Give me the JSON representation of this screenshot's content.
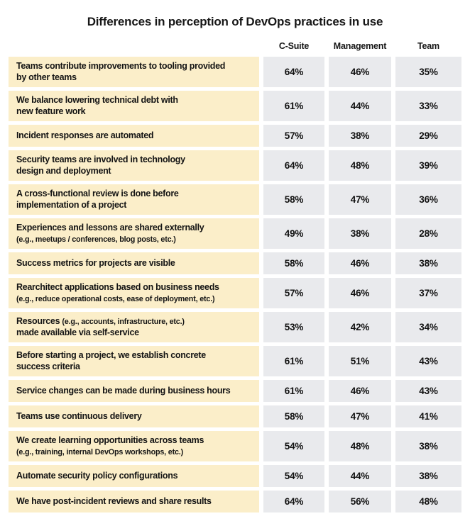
{
  "title": "Differences in perception of DevOps practices in use",
  "columns": [
    "C-Suite",
    "Management",
    "Team"
  ],
  "colors": {
    "label_bg": "#FBEEC9",
    "value_bg": "#E9EAED",
    "text": "#141414",
    "page_bg": "#FFFFFF"
  },
  "rows": [
    {
      "lines": [
        [
          {
            "t": "Teams contribute improvements to tooling provided"
          }
        ],
        [
          {
            "t": "by other teams"
          }
        ]
      ],
      "values": [
        "64%",
        "46%",
        "35%"
      ]
    },
    {
      "lines": [
        [
          {
            "t": "We balance lowering technical debt with"
          }
        ],
        [
          {
            "t": "new feature work"
          }
        ]
      ],
      "values": [
        "61%",
        "44%",
        "33%"
      ]
    },
    {
      "lines": [
        [
          {
            "t": "Incident responses are automated"
          }
        ]
      ],
      "values": [
        "57%",
        "38%",
        "29%"
      ]
    },
    {
      "lines": [
        [
          {
            "t": "Security teams are involved in technology"
          }
        ],
        [
          {
            "t": "design and deployment"
          }
        ]
      ],
      "values": [
        "64%",
        "48%",
        "39%"
      ]
    },
    {
      "lines": [
        [
          {
            "t": "A cross-functional review is done before"
          }
        ],
        [
          {
            "t": "implementation of a project"
          }
        ]
      ],
      "values": [
        "58%",
        "47%",
        "36%"
      ]
    },
    {
      "lines": [
        [
          {
            "t": "Experiences and lessons are shared externally"
          }
        ],
        [
          {
            "t": "(e.g., meetups / conferences, blog posts, etc.)",
            "small": true
          }
        ]
      ],
      "values": [
        "49%",
        "38%",
        "28%"
      ]
    },
    {
      "lines": [
        [
          {
            "t": "Success metrics for projects are visible"
          }
        ]
      ],
      "values": [
        "58%",
        "46%",
        "38%"
      ]
    },
    {
      "lines": [
        [
          {
            "t": "Rearchitect applications based on business needs"
          }
        ],
        [
          {
            "t": "(e.g., reduce operational costs, ease of deployment, etc.)",
            "small": true
          }
        ]
      ],
      "values": [
        "57%",
        "46%",
        "37%"
      ]
    },
    {
      "lines": [
        [
          {
            "t": "Resources "
          },
          {
            "t": "(e.g., accounts, infrastructure, etc.)",
            "small": true
          }
        ],
        [
          {
            "t": "made available via self-service"
          }
        ]
      ],
      "values": [
        "53%",
        "42%",
        "34%"
      ]
    },
    {
      "lines": [
        [
          {
            "t": "Before starting a project, we establish concrete"
          }
        ],
        [
          {
            "t": "success criteria"
          }
        ]
      ],
      "values": [
        "61%",
        "51%",
        "43%"
      ]
    },
    {
      "lines": [
        [
          {
            "t": "Service changes can be made during business hours"
          }
        ]
      ],
      "values": [
        "61%",
        "46%",
        "43%"
      ]
    },
    {
      "lines": [
        [
          {
            "t": "Teams use continuous delivery"
          }
        ]
      ],
      "values": [
        "58%",
        "47%",
        "41%"
      ]
    },
    {
      "lines": [
        [
          {
            "t": "We create learning opportunities across teams"
          }
        ],
        [
          {
            "t": "(e.g., training, internal DevOps workshops, etc.)",
            "small": true
          }
        ]
      ],
      "values": [
        "54%",
        "48%",
        "38%"
      ]
    },
    {
      "lines": [
        [
          {
            "t": "Automate security policy configurations"
          }
        ]
      ],
      "values": [
        "54%",
        "44%",
        "38%"
      ]
    },
    {
      "lines": [
        [
          {
            "t": "We have post-incident reviews and share results"
          }
        ]
      ],
      "values": [
        "64%",
        "56%",
        "48%"
      ]
    }
  ],
  "chart_data": {
    "type": "table",
    "title": "Differences in perception of DevOps practices in use",
    "columns": [
      "C-Suite",
      "Management",
      "Team"
    ],
    "unit": "percent",
    "rows": [
      {
        "practice": "Teams contribute improvements to tooling provided by other teams",
        "values": [
          64,
          46,
          35
        ]
      },
      {
        "practice": "We balance lowering technical debt with new feature work",
        "values": [
          61,
          44,
          33
        ]
      },
      {
        "practice": "Incident responses are automated",
        "values": [
          57,
          38,
          29
        ]
      },
      {
        "practice": "Security teams are involved in technology design and deployment",
        "values": [
          64,
          48,
          39
        ]
      },
      {
        "practice": "A cross-functional review is done before implementation of a project",
        "values": [
          58,
          47,
          36
        ]
      },
      {
        "practice": "Experiences and lessons are shared externally (e.g., meetups / conferences, blog posts, etc.)",
        "values": [
          49,
          38,
          28
        ]
      },
      {
        "practice": "Success metrics for projects are visible",
        "values": [
          58,
          46,
          38
        ]
      },
      {
        "practice": "Rearchitect applications based on business needs (e.g., reduce operational costs, ease of deployment, etc.)",
        "values": [
          57,
          46,
          37
        ]
      },
      {
        "practice": "Resources (e.g., accounts, infrastructure, etc.) made available via self-service",
        "values": [
          53,
          42,
          34
        ]
      },
      {
        "practice": "Before starting a project, we establish concrete success criteria",
        "values": [
          61,
          51,
          43
        ]
      },
      {
        "practice": "Service changes can be made during business hours",
        "values": [
          61,
          46,
          43
        ]
      },
      {
        "practice": "Teams use continuous delivery",
        "values": [
          58,
          47,
          41
        ]
      },
      {
        "practice": "We create learning opportunities across teams (e.g., training, internal DevOps workshops, etc.)",
        "values": [
          54,
          48,
          38
        ]
      },
      {
        "practice": "Automate security policy configurations",
        "values": [
          54,
          44,
          38
        ]
      },
      {
        "practice": "We have post-incident reviews and share results",
        "values": [
          64,
          56,
          48
        ]
      }
    ]
  }
}
